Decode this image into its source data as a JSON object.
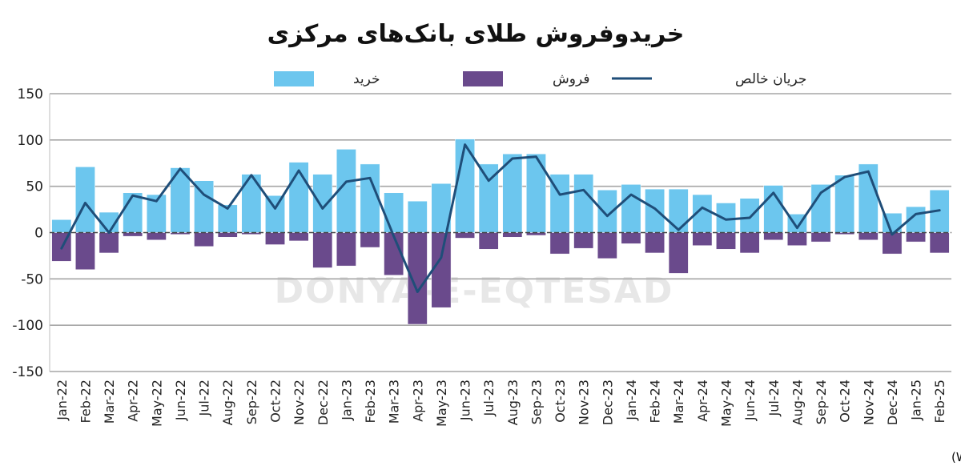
{
  "chart_data": {
    "type": "bar",
    "title": "خریدوفروش طلای بانک‌های مرکزی",
    "source": "منبع: شورای جهانی طلا(WGC)",
    "watermark": "DONYA-E-EQTESAD",
    "ylim": [
      -150,
      150
    ],
    "yticks": [
      "150",
      "100",
      "50",
      "0",
      "-50",
      "-100",
      "-150"
    ],
    "grid": "horizontal",
    "legend_position": "top",
    "categories": [
      "Jan-22",
      "Feb-22",
      "Mar-22",
      "Apr-22",
      "May-22",
      "Jun-22",
      "Jul-22",
      "Aug-22",
      "Sep-22",
      "Oct-22",
      "Nov-22",
      "Dec-22",
      "Jan-23",
      "Feb-23",
      "Mar-23",
      "Apr-23",
      "May-23",
      "Jun-23",
      "Jul-23",
      "Aug-23",
      "Sep-23",
      "Oct-23",
      "Nov-23",
      "Dec-23",
      "Jan-24",
      "Feb-24",
      "Mar-24",
      "Apr-24",
      "May-24",
      "Jun-24",
      "Jul-24",
      "Aug-24",
      "Sep-24",
      "Oct-24",
      "Nov-24",
      "Dec-24",
      "Jan-25",
      "Feb-25"
    ],
    "series": [
      {
        "name": "خرید",
        "type": "bar",
        "color": "#6cc6ee",
        "values": [
          14,
          71,
          22,
          43,
          41,
          70,
          56,
          30,
          63,
          40,
          76,
          63,
          90,
          74,
          43,
          34,
          53,
          101,
          74,
          85,
          85,
          63,
          63,
          46,
          52,
          47,
          47,
          41,
          32,
          37,
          51,
          20,
          52,
          62,
          74,
          21,
          28,
          46
        ]
      },
      {
        "name": "فروش",
        "type": "bar",
        "color": "#6a4a8c",
        "values": [
          -31,
          -40,
          -22,
          -4,
          -8,
          -2,
          -15,
          -5,
          -2,
          -13,
          -9,
          -38,
          -36,
          -16,
          -46,
          -99,
          -81,
          -6,
          -18,
          -5,
          -3,
          -23,
          -17,
          -28,
          -12,
          -22,
          -44,
          -14,
          -18,
          -22,
          -8,
          -14,
          -10,
          -2,
          -8,
          -23,
          -10,
          -22
        ]
      },
      {
        "name": "جریان خالص",
        "type": "line",
        "color": "#1f4e79",
        "values": [
          -17,
          32,
          0,
          40,
          34,
          69,
          41,
          26,
          62,
          26,
          67,
          26,
          55,
          59,
          -4,
          -64,
          -27,
          95,
          56,
          80,
          82,
          41,
          46,
          18,
          41,
          26,
          3,
          27,
          14,
          16,
          43,
          5,
          43,
          60,
          66,
          -2,
          20,
          24
        ]
      }
    ]
  }
}
